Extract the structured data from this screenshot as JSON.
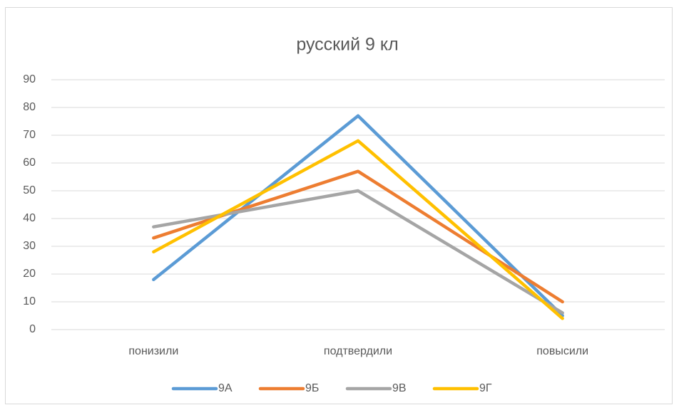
{
  "chart_data": {
    "type": "line",
    "title": "русский 9 кл",
    "categories": [
      "понизили",
      "подтвердили",
      "повысили"
    ],
    "series": [
      {
        "name": "9А",
        "color": "#5b9bd5",
        "values": [
          18,
          77,
          5
        ]
      },
      {
        "name": "9Б",
        "color": "#ed7d31",
        "values": [
          33,
          57,
          10
        ]
      },
      {
        "name": "9В",
        "color": "#a5a5a5",
        "values": [
          37,
          50,
          6
        ]
      },
      {
        "name": "9Г",
        "color": "#ffc000",
        "values": [
          28,
          68,
          4
        ]
      }
    ],
    "ylim": [
      0,
      90
    ],
    "yticks": [
      0,
      10,
      20,
      30,
      40,
      50,
      60,
      70,
      80,
      90
    ],
    "grid": true,
    "legend": "bottom"
  }
}
